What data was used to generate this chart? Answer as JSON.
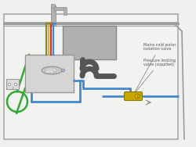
{
  "bg_color": "#f0f0ee",
  "cabinet_fill": "#f2f2f0",
  "cabinet_edge": "#aaaaaa",
  "unit_fill": "#d8d8d6",
  "unit_edge": "#999999",
  "sink_fill": "#b0b0b0",
  "sink_edge": "#888888",
  "tap_color": "#aaaaaa",
  "pipe_blue": "#4488cc",
  "pipe_red": "#cc3333",
  "pipe_yellow": "#c8b84a",
  "pipe_olive": "#8a8a30",
  "pipe_green": "#33aa33",
  "pipe_darkgray": "#555555",
  "annotation_color": "#555555",
  "label1": "Pressure limiting\nvalve (supplied)",
  "label2": "Mains cold water\nisolation valve",
  "figsize": [
    2.5,
    1.88
  ],
  "dpi": 100
}
